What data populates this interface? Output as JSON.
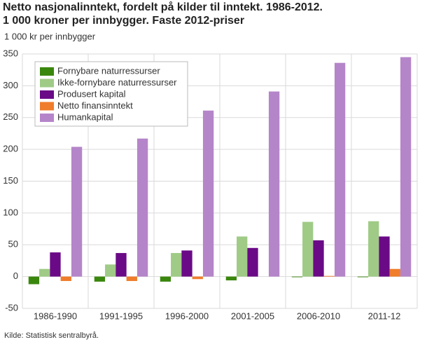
{
  "chart_data": {
    "type": "bar",
    "title": "Netto nasjonalinntekt, fordelt på kilder til inntekt. 1986-2012.",
    "subtitle": "1 000 kroner per innbygger. Faste 2012-priser",
    "ylabel": "1 000 kr per innbygger",
    "source": "Kilde: Statistisk sentralbyrå.",
    "categories": [
      "1986-1990",
      "1991-1995",
      "1996-2000",
      "2001-2005",
      "2006-2010",
      "2011-12"
    ],
    "series": [
      {
        "name": "Fornybare naturressurser",
        "color": "#3a870e",
        "values": [
          -12,
          -8,
          -8,
          -6,
          -1,
          -1
        ]
      },
      {
        "name": "Ikke-fornybare naturressurser",
        "color": "#9fcb86",
        "values": [
          12,
          19,
          37,
          63,
          86,
          87
        ]
      },
      {
        "name": "Produsert kapital",
        "color": "#6a0a86",
        "values": [
          38,
          37,
          41,
          45,
          57,
          63
        ]
      },
      {
        "name": "Netto finansinntekt",
        "color": "#ef7d2b",
        "values": [
          -7,
          -7,
          -4,
          0,
          1,
          12
        ]
      },
      {
        "name": "Humankapital",
        "color": "#b585c9",
        "values": [
          204,
          217,
          261,
          291,
          336,
          345
        ]
      }
    ],
    "ylim": [
      -50,
      350
    ],
    "yticks": [
      -50,
      0,
      50,
      100,
      150,
      200,
      250,
      300,
      350
    ],
    "grid": true,
    "legend": "upper left"
  }
}
